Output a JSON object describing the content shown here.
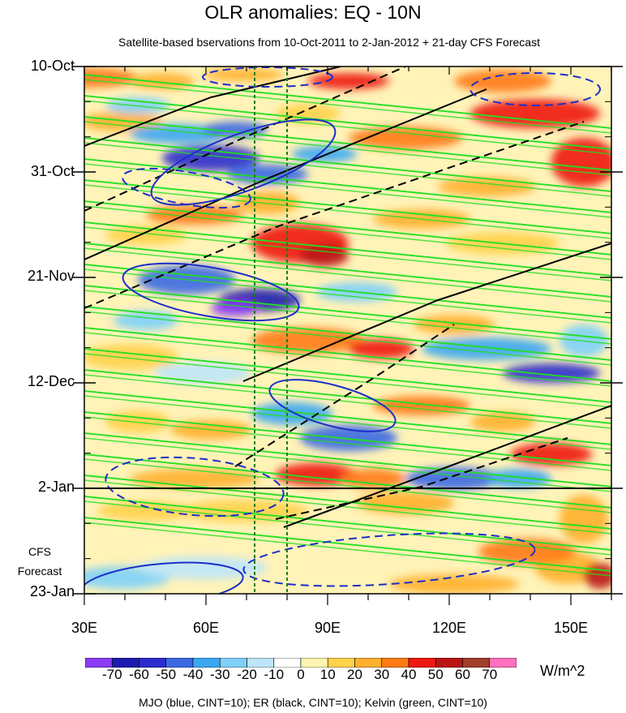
{
  "chart_data": {
    "type": "heatmap",
    "title": "OLR anomalies: EQ - 10N",
    "subtitle": "Satellite-based bservations from 10-Oct-2011 to 2-Jan-2012 + 21-day CFS Forecast",
    "y_axis": {
      "reversed": true,
      "ticks": [
        "10-Oct",
        "31-Oct",
        "21-Nov",
        "12-Dec",
        "2-Jan",
        "23-Jan"
      ]
    },
    "x_axis": {
      "range": [
        30,
        160
      ],
      "ticks": [
        "30E",
        "60E",
        "90E",
        "120E",
        "150E"
      ]
    },
    "forecast_label": [
      "CFS",
      "Forecast"
    ],
    "forecast_start": "2-Jan",
    "dashed_reference_lines_lon": [
      72,
      80
    ],
    "colorbar": {
      "tick_labels": [
        "-70",
        "-60",
        "-50",
        "-40",
        "-30",
        "-20",
        "-10",
        "0",
        "10",
        "20",
        "30",
        "40",
        "50",
        "60",
        "70"
      ],
      "colors": [
        "#8b3cf5",
        "#1c1cae",
        "#2c2ccc",
        "#3c69e3",
        "#3ba7f2",
        "#7ed0f8",
        "#bde6fa",
        "#ffffff",
        "#fff5b0",
        "#ffd24a",
        "#ffb02e",
        "#ff7a14",
        "#ee1a12",
        "#bb1414",
        "#a13f2a",
        "#ff70bf"
      ],
      "units": "W/m^2"
    },
    "contour_legend": "MJO (blue, CINT=10); ER (black, CINT=10); Kelvin (green, CINT=10)",
    "mjo_color": "#1c2fc8",
    "er_color": "#000000",
    "kelvin_color": "#22dd22"
  }
}
